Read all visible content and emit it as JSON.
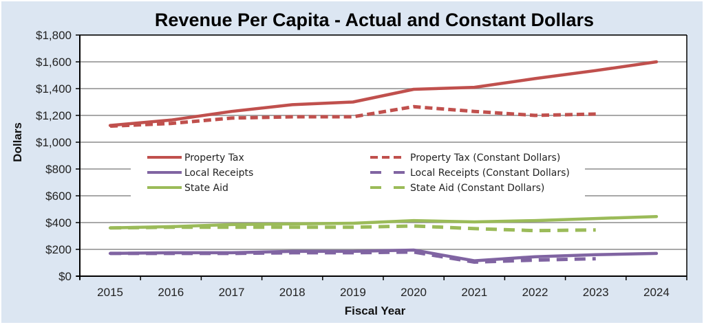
{
  "chart_data": {
    "type": "line",
    "title": "Revenue Per Capita - Actual and Constant Dollars",
    "xlabel": "Fiscal Year",
    "ylabel": "Dollars",
    "ylim": [
      0,
      1800
    ],
    "y_ticks": [
      0,
      200,
      400,
      600,
      800,
      1000,
      1200,
      1400,
      1600,
      1800
    ],
    "y_tick_labels": [
      "$0",
      "$200",
      "$400",
      "$600",
      "$800",
      "$1,000",
      "$1,200",
      "$1,400",
      "$1,600",
      "$1,800"
    ],
    "categories": [
      "2015",
      "2016",
      "2017",
      "2018",
      "2019",
      "2020",
      "2021",
      "2022",
      "2023",
      "2024"
    ],
    "grid": true,
    "legend_placement": "center-left, inside plot",
    "series": [
      {
        "name": "Property Tax",
        "color": "#c0504d",
        "style": "solid",
        "values": [
          1125,
          1165,
          1230,
          1280,
          1300,
          1395,
          1410,
          1475,
          1535,
          1600
        ]
      },
      {
        "name": "Property Tax (Constant Dollars)",
        "color": "#c0504d",
        "style": "dash",
        "values": [
          1120,
          1140,
          1180,
          1190,
          1190,
          1265,
          1230,
          1200,
          1210,
          null
        ]
      },
      {
        "name": "Local Receipts",
        "color": "#8064a2",
        "style": "solid",
        "values": [
          170,
          175,
          175,
          185,
          185,
          195,
          115,
          145,
          160,
          170
        ]
      },
      {
        "name": "Local Receipts (Constant Dollars)",
        "color": "#8064a2",
        "style": "longdash",
        "values": [
          170,
          170,
          170,
          175,
          175,
          180,
          105,
          120,
          130,
          null
        ]
      },
      {
        "name": "State Aid",
        "color": "#9bbb59",
        "style": "solid",
        "values": [
          360,
          370,
          385,
          390,
          395,
          415,
          405,
          415,
          430,
          445
        ]
      },
      {
        "name": "State Aid (Constant Dollars)",
        "color": "#9bbb59",
        "style": "longdash",
        "values": [
          360,
          365,
          365,
          365,
          365,
          375,
          355,
          340,
          345,
          null
        ]
      }
    ],
    "legend": {
      "left": [
        "Property Tax",
        "Local Receipts",
        "State Aid"
      ],
      "right": [
        "Property Tax (Constant Dollars)",
        "Local Receipts (Constant Dollars)",
        "State Aid (Constant Dollars)"
      ]
    }
  }
}
